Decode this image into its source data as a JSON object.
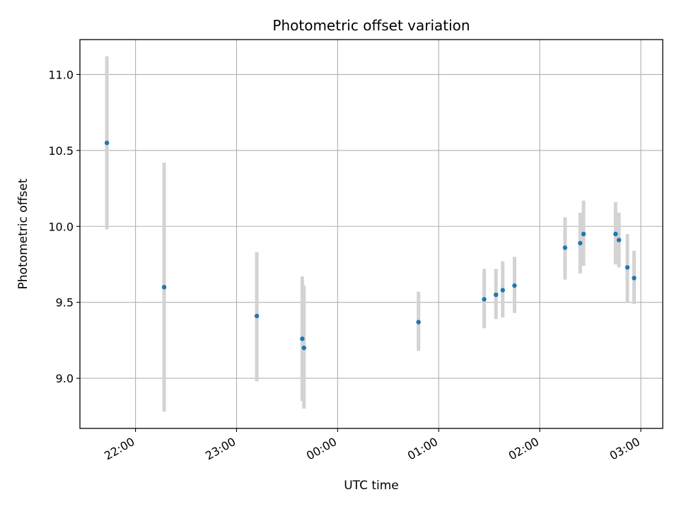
{
  "chart_data": {
    "type": "scatter",
    "title": "Photometric offset variation",
    "xlabel": "UTC time",
    "ylabel": "Photometric offset",
    "x_is_time": true,
    "xlim": [
      "21:27",
      "03:13"
    ],
    "ylim": [
      8.67,
      11.23
    ],
    "x_ticks": [
      "22:00",
      "23:00",
      "00:00",
      "01:00",
      "02:00",
      "03:00"
    ],
    "y_ticks": [
      9.0,
      9.5,
      10.0,
      10.5,
      11.0
    ],
    "y_tick_labels": [
      "9.0",
      "9.5",
      "10.0",
      "10.5",
      "11.0"
    ],
    "grid": true,
    "colors": {
      "point": "#1f77b4",
      "errorbar": "#d3d3d3",
      "grid": "#b0b0b0",
      "axes": "#000000"
    },
    "series": [
      {
        "points": [
          {
            "x": "21:43",
            "y": 10.55,
            "ylow": 9.98,
            "yhigh": 11.12
          },
          {
            "x": "22:17",
            "y": 9.6,
            "ylow": 8.78,
            "yhigh": 10.42
          },
          {
            "x": "23:12",
            "y": 9.41,
            "ylow": 8.98,
            "yhigh": 9.83
          },
          {
            "x": "23:39",
            "y": 9.26,
            "ylow": 8.85,
            "yhigh": 9.67
          },
          {
            "x": "23:40",
            "y": 9.2,
            "ylow": 8.8,
            "yhigh": 9.61
          },
          {
            "x": "00:48",
            "y": 9.37,
            "ylow": 9.18,
            "yhigh": 9.57
          },
          {
            "x": "01:27",
            "y": 9.52,
            "ylow": 9.33,
            "yhigh": 9.72
          },
          {
            "x": "01:34",
            "y": 9.55,
            "ylow": 9.39,
            "yhigh": 9.72
          },
          {
            "x": "01:38",
            "y": 9.58,
            "ylow": 9.4,
            "yhigh": 9.77
          },
          {
            "x": "01:45",
            "y": 9.61,
            "ylow": 9.43,
            "yhigh": 9.8
          },
          {
            "x": "02:15",
            "y": 9.86,
            "ylow": 9.65,
            "yhigh": 10.06
          },
          {
            "x": "02:24",
            "y": 9.89,
            "ylow": 9.69,
            "yhigh": 10.09
          },
          {
            "x": "02:26",
            "y": 9.95,
            "ylow": 9.74,
            "yhigh": 10.17
          },
          {
            "x": "02:45",
            "y": 9.95,
            "ylow": 9.75,
            "yhigh": 10.16
          },
          {
            "x": "02:47",
            "y": 9.91,
            "ylow": 9.73,
            "yhigh": 10.09
          },
          {
            "x": "02:52",
            "y": 9.73,
            "ylow": 9.5,
            "yhigh": 9.95
          },
          {
            "x": "02:56",
            "y": 9.66,
            "ylow": 9.49,
            "yhigh": 9.84
          }
        ]
      }
    ]
  }
}
